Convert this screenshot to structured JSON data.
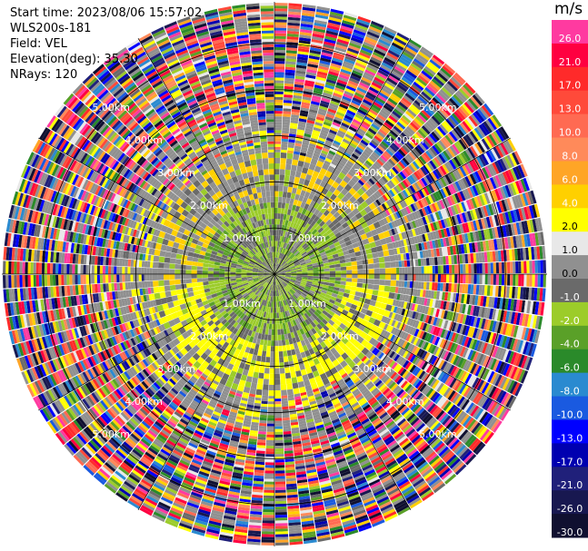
{
  "header": {
    "start_time": "Start time: 2023/08/06 15:57:02",
    "instrument": "WLS200s-181",
    "field": "Field: VEL",
    "elevation": "Elevation(deg): 35.30",
    "nrays": "NRays: 120"
  },
  "colorbar": {
    "unit": "m/s",
    "levels": [
      {
        "label": "26.0",
        "color": "#ff3aa0"
      },
      {
        "label": "21.0",
        "color": "#ff0040"
      },
      {
        "label": "17.0",
        "color": "#ff2a2a"
      },
      {
        "label": "13.0",
        "color": "#ff4a3a"
      },
      {
        "label": "10.0",
        "color": "#ff6a52"
      },
      {
        "label": "8.0",
        "color": "#ff8a5a"
      },
      {
        "label": "6.0",
        "color": "#ffa526"
      },
      {
        "label": "4.0",
        "color": "#ffd000"
      },
      {
        "label": "2.0",
        "color": "#ffff00"
      },
      {
        "label": "1.0",
        "color": "#e8e8e8"
      },
      {
        "label": "0.0",
        "color": "#909090"
      },
      {
        "label": "-1.0",
        "color": "#6a6a6a"
      },
      {
        "label": "-2.0",
        "color": "#9ccc2a"
      },
      {
        "label": "-4.0",
        "color": "#5aa028"
      },
      {
        "label": "-6.0",
        "color": "#2a8a2a"
      },
      {
        "label": "-8.0",
        "color": "#2a8ad0"
      },
      {
        "label": "-10.0",
        "color": "#1a5ae0"
      },
      {
        "label": "-13.0",
        "color": "#0000ff"
      },
      {
        "label": "-17.0",
        "color": "#0000b0"
      },
      {
        "label": "-21.0",
        "color": "#20207a"
      },
      {
        "label": "-26.0",
        "color": "#181850"
      },
      {
        "label": "-30.0",
        "color": "#101030"
      }
    ]
  },
  "chart_data": {
    "type": "heatmap",
    "projection": "polar-ppi",
    "field": "VEL",
    "nrays": 120,
    "range_rings_km": [
      1.0,
      2.0,
      3.0,
      4.0,
      5.0
    ],
    "max_range_km": 5.9,
    "ring_labels": [
      {
        "text": "1.00km"
      },
      {
        "text": "1.00km"
      },
      {
        "text": "1.00km"
      },
      {
        "text": "1.00km"
      },
      {
        "text": "2.00km"
      },
      {
        "text": "2.00km"
      },
      {
        "text": "2.00km"
      },
      {
        "text": "2.00km"
      },
      {
        "text": "3.00km"
      },
      {
        "text": "3.00km"
      },
      {
        "text": "3.00km"
      },
      {
        "text": "3.00km"
      },
      {
        "text": "4.00km"
      },
      {
        "text": "4.00km"
      },
      {
        "text": "4.00km"
      },
      {
        "text": "4.00km"
      },
      {
        "text": "5.00km"
      },
      {
        "text": "5.00km"
      },
      {
        "text": "5.00km"
      },
      {
        "text": "5.00km"
      }
    ],
    "grid": true,
    "colorbar_placement": "right",
    "description_regions": [
      {
        "range_km": [
          0,
          1.5
        ],
        "dominant_velocity_ms": [
          -1.0,
          -2.0
        ]
      },
      {
        "range_km": [
          1.5,
          2.6
        ],
        "dominant_velocity_ms": [
          0.0,
          2.0
        ]
      },
      {
        "range_km": [
          2.6,
          5.9
        ],
        "dominant_velocity_ms": "noise"
      }
    ]
  }
}
